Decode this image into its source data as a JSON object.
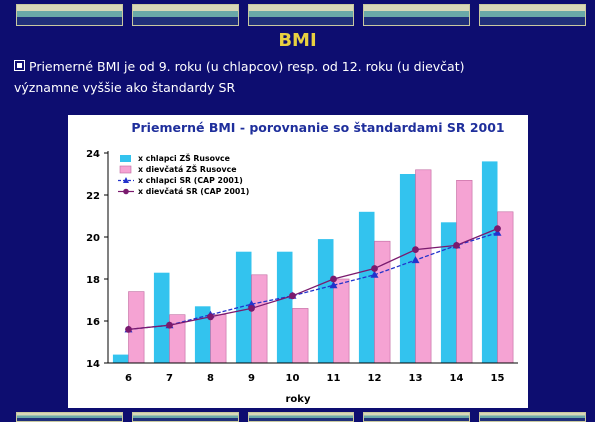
{
  "slide": {
    "title": "BMI",
    "bullet_line1": "Priemerné BMI je od 9. roku (u chlapcov) resp. od 12. roku (u dievčat)",
    "bullet_line2": "významne vyššie ako štandardy SR"
  },
  "colors": {
    "background": "#0d0d70",
    "title": "#e8d040",
    "chart_title": "#1f2f9c",
    "bar_boys": "#33c3ee",
    "bar_girls": "#f5a3d3",
    "line_boys": "#2233cc",
    "line_girls": "#7a1a6e"
  },
  "chart_data": {
    "type": "bar",
    "title": "Priemerné BMI - porovnanie so štandardami SR 2001",
    "xlabel": "roky",
    "ylabel": "",
    "categories": [
      "6",
      "7",
      "8",
      "9",
      "10",
      "11",
      "12",
      "13",
      "14",
      "15"
    ],
    "ylim": [
      14,
      24
    ],
    "yticks": [
      14,
      16,
      18,
      20,
      22,
      24
    ],
    "grid": false,
    "legend_position": "top-left",
    "series": [
      {
        "name": "x chlapci ZŠ Rusovce",
        "kind": "bar",
        "values": [
          14.4,
          18.3,
          16.7,
          19.3,
          19.3,
          19.9,
          21.2,
          23.0,
          20.7,
          23.6
        ]
      },
      {
        "name": "x dievčatá ZŠ Rusovce",
        "kind": "bar",
        "values": [
          17.4,
          16.3,
          16.3,
          18.2,
          16.6,
          18.0,
          19.8,
          23.2,
          22.7,
          21.2
        ]
      },
      {
        "name": "x chlapci SR (CAP 2001)",
        "kind": "line",
        "marker": "triangle",
        "values": [
          15.6,
          15.8,
          16.3,
          16.8,
          17.2,
          17.7,
          18.2,
          18.9,
          19.6,
          20.2
        ]
      },
      {
        "name": "x dievčatá SR (CAP 2001)",
        "kind": "line",
        "marker": "circle",
        "values": [
          15.6,
          15.8,
          16.2,
          16.6,
          17.2,
          18.0,
          18.5,
          19.4,
          19.6,
          20.4
        ]
      }
    ]
  }
}
